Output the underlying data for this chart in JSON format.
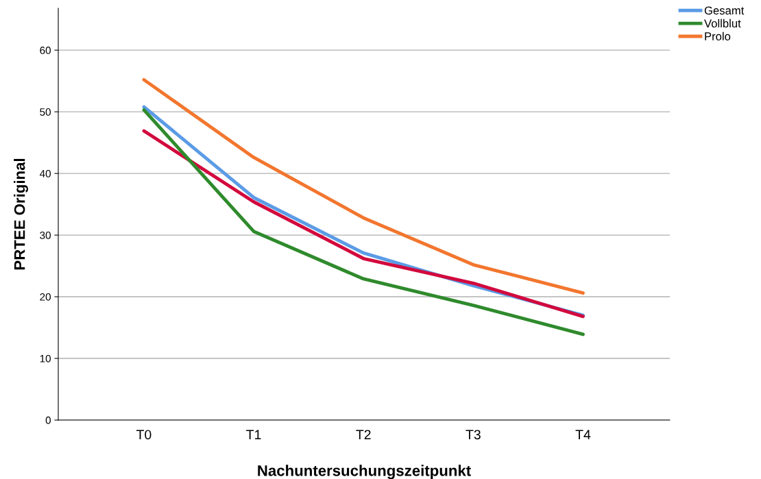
{
  "chart_data": {
    "type": "line",
    "xlabel": "Nachuntersuchungszeitpunkt",
    "ylabel": "PRTEE Original",
    "categories": [
      "T0",
      "T1",
      "T2",
      "T3",
      "T4"
    ],
    "series": [
      {
        "name": "Gesamt",
        "color": "#5b9be6",
        "values": [
          50.8,
          36.1,
          27.1,
          21.8,
          17.0
        ]
      },
      {
        "color": "#d2093d",
        "values": [
          46.9,
          35.4,
          26.2,
          22.2,
          16.8
        ]
      },
      {
        "name": "Vollblut",
        "color": "#2f8a2c",
        "values": [
          50.3,
          30.6,
          22.9,
          18.6,
          13.9
        ]
      },
      {
        "name": "Prolo",
        "color": "#f2762e",
        "values": [
          55.2,
          42.6,
          32.8,
          25.2,
          20.6
        ]
      }
    ],
    "ylim": [
      0,
      66.8
    ],
    "yticks": [
      0,
      10,
      20,
      30,
      40,
      50,
      60
    ],
    "grid": "y",
    "legend": "top right",
    "marker": "none",
    "line_style": "solid"
  }
}
